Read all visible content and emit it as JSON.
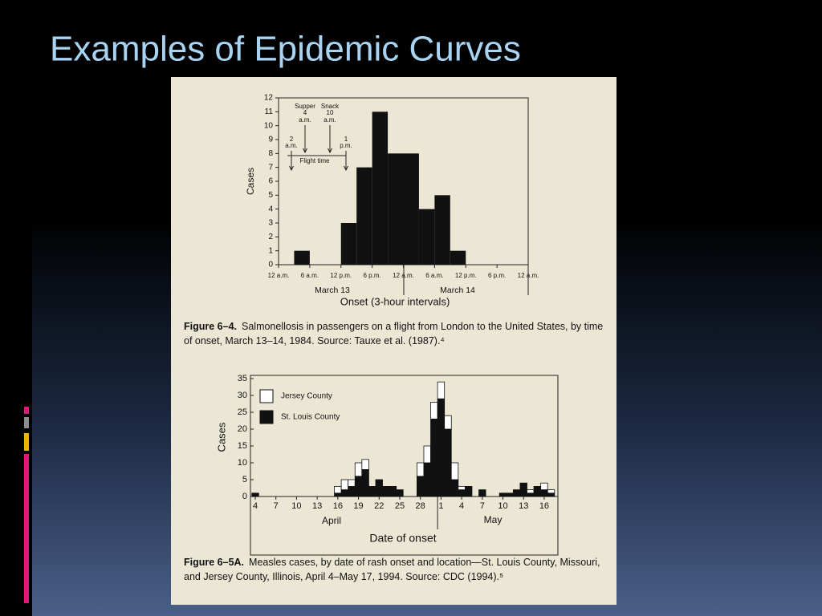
{
  "slide": {
    "title": "Examples of Epidemic Curves"
  },
  "chart_data": [
    {
      "type": "histogram",
      "ylabel": "Cases",
      "xlabel": "Onset (3-hour intervals)",
      "bins": [
        0,
        3,
        6,
        9,
        12,
        15,
        18,
        21,
        24,
        27,
        30,
        33,
        36,
        39,
        42,
        45,
        48
      ],
      "values": [
        0,
        1,
        0,
        0,
        3,
        7,
        11,
        8,
        8,
        4,
        5,
        1,
        0,
        0,
        0,
        0
      ],
      "color": "#111111",
      "xlim": [
        0,
        48
      ],
      "xticks": [
        {
          "value": 0,
          "label": "12 a.m."
        },
        {
          "value": 6,
          "label": "6 a.m."
        },
        {
          "value": 12,
          "label": "12 p.m."
        },
        {
          "value": 18,
          "label": "6 p.m."
        },
        {
          "value": 24,
          "label": "12 a.m."
        },
        {
          "value": 30,
          "label": "6 a.m."
        },
        {
          "value": 36,
          "label": "12 p.m."
        },
        {
          "value": 42,
          "label": "6 p.m."
        },
        {
          "value": 48,
          "label": "12 a.m."
        }
      ],
      "ylim": [
        0,
        12
      ],
      "yticks": [
        0,
        1,
        2,
        3,
        4,
        5,
        6,
        7,
        8,
        9,
        10,
        11,
        12
      ],
      "annotations": [
        "Supper",
        "4",
        "a.m.",
        "Snack",
        "10",
        "a.m.",
        "2",
        "a.m.",
        "1",
        "p.m.",
        "Flight time",
        "March 13",
        "March 14"
      ],
      "caption_label": "Figure 6–4.",
      "caption": "Salmonellosis in passengers on a flight from London to the United States, by time of onset, March 13–14, 1984. Source: Tauxe et al. (1987).⁴"
    },
    {
      "type": "stacked-bar",
      "ylabel": "Cases",
      "xlabel": "Date of onset",
      "categories": [
        "4",
        null,
        null,
        "7",
        null,
        null,
        "10",
        null,
        null,
        "13",
        null,
        null,
        "16",
        null,
        null,
        "19",
        null,
        null,
        "22",
        null,
        null,
        "25",
        null,
        null,
        "28",
        null,
        null,
        "1",
        null,
        null,
        "4",
        null,
        null,
        "7",
        null,
        null,
        "10",
        null,
        null,
        "13",
        null,
        null,
        "16",
        null
      ],
      "series": [
        {
          "name": "St. Louis County",
          "color": "#111111",
          "values": [
            1,
            0,
            0,
            0,
            0,
            0,
            0,
            0,
            0,
            0,
            0,
            0,
            1,
            2,
            3,
            6,
            8,
            3,
            5,
            3,
            3,
            2,
            0,
            0,
            6,
            10,
            23,
            29,
            20,
            5,
            2,
            3,
            0,
            2,
            0,
            0,
            1,
            1,
            2,
            4,
            1,
            3,
            2,
            1
          ]
        },
        {
          "name": "Jersey County",
          "color": "#ffffff",
          "values": [
            0,
            0,
            0,
            0,
            0,
            0,
            0,
            0,
            0,
            0,
            0,
            0,
            2,
            3,
            2,
            4,
            3,
            0,
            0,
            0,
            0,
            0,
            0,
            0,
            4,
            5,
            5,
            5,
            4,
            5,
            1,
            0,
            0,
            0,
            0,
            0,
            0,
            0,
            0,
            0,
            1,
            0,
            2,
            1
          ]
        }
      ],
      "ylim": [
        0,
        35
      ],
      "yticks": [
        0,
        5,
        10,
        15,
        20,
        25,
        30,
        35
      ],
      "annotations": [
        "April",
        "May"
      ],
      "caption_label": "Figure 6–5A.",
      "caption": "Measles cases, by date of rash onset and location—St. Louis County, Missouri, and Jersey County, Illinois, April 4–May 17, 1994. Source: CDC (1994).⁵"
    }
  ]
}
